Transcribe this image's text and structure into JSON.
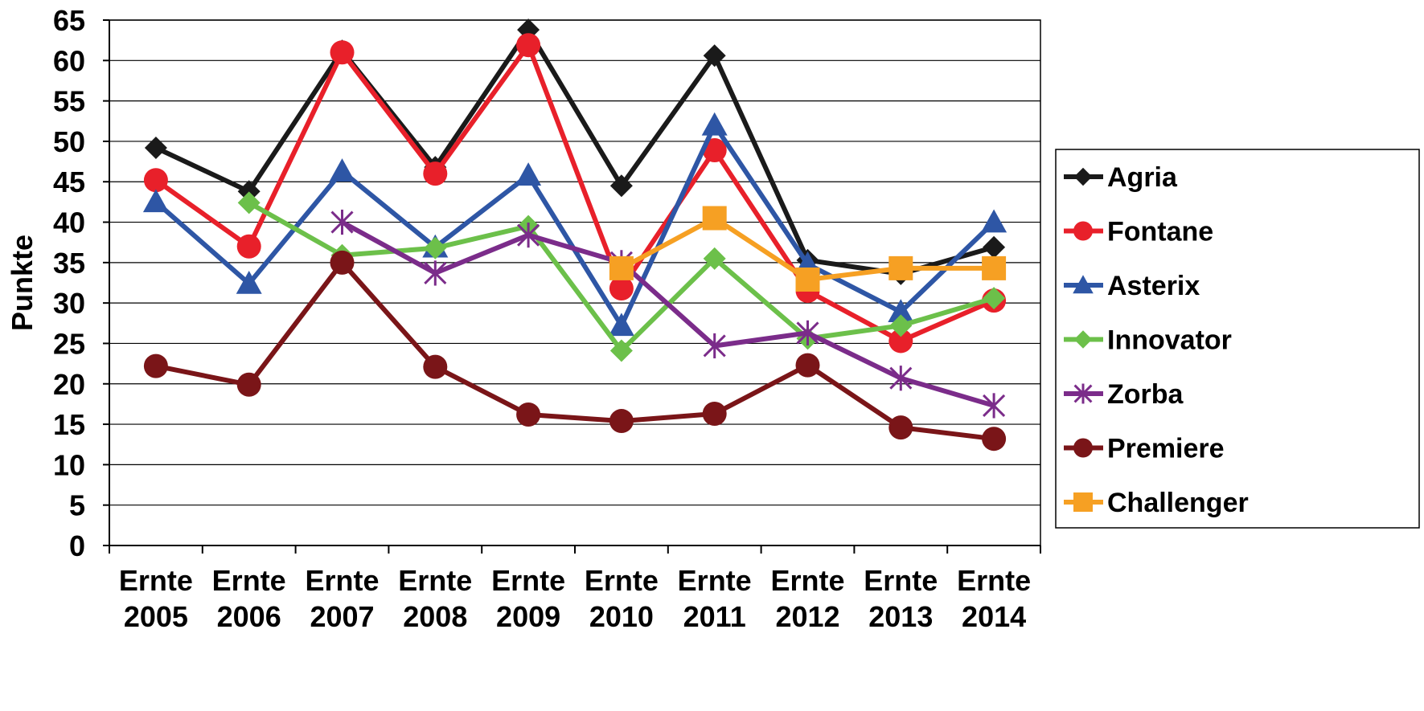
{
  "chart_data": {
    "type": "line",
    "title": "",
    "xlabel": "",
    "ylabel": "Punkte",
    "ylim": [
      0,
      65
    ],
    "yticks": [
      0,
      5,
      10,
      15,
      20,
      25,
      30,
      35,
      40,
      45,
      50,
      55,
      60,
      65
    ],
    "grid": true,
    "legend_position": "right",
    "categories": [
      [
        "Ernte",
        "2005"
      ],
      [
        "Ernte",
        "2006"
      ],
      [
        "Ernte",
        "2007"
      ],
      [
        "Ernte",
        "2008"
      ],
      [
        "Ernte",
        "2009"
      ],
      [
        "Ernte",
        "2010"
      ],
      [
        "Ernte",
        "2011"
      ],
      [
        "Ernte",
        "2012"
      ],
      [
        "Ernte",
        "2013"
      ],
      [
        "Ernte",
        "2014"
      ]
    ],
    "series": [
      {
        "name": "Agria",
        "color": "#1a1a1a",
        "marker": "diamond",
        "values": [
          49.2,
          43.8,
          61.2,
          46.8,
          63.8,
          44.5,
          60.6,
          35.3,
          33.6,
          36.9
        ]
      },
      {
        "name": "Fontane",
        "color": "#e8202a",
        "marker": "circle",
        "values": [
          45.2,
          37.0,
          61.0,
          46.0,
          61.9,
          31.8,
          48.9,
          31.5,
          25.3,
          30.3
        ]
      },
      {
        "name": "Asterix",
        "color": "#2e56a5",
        "marker": "triangle",
        "values": [
          42.5,
          32.4,
          46.3,
          36.9,
          45.8,
          27.2,
          52.0,
          34.8,
          28.9,
          40.0
        ]
      },
      {
        "name": "Innovator",
        "color": "#6cc04a",
        "marker": "diamond",
        "values": [
          null,
          42.4,
          35.9,
          36.8,
          39.5,
          24.1,
          35.5,
          25.6,
          27.2,
          30.6
        ]
      },
      {
        "name": "Zorba",
        "color": "#7b2c8a",
        "marker": "star",
        "values": [
          null,
          null,
          40.0,
          33.7,
          38.4,
          35.0,
          24.7,
          26.3,
          20.7,
          17.3
        ]
      },
      {
        "name": "Premiere",
        "color": "#7a1518",
        "marker": "circle",
        "values": [
          22.2,
          19.9,
          35.0,
          22.1,
          16.2,
          15.4,
          16.3,
          22.3,
          14.6,
          13.2
        ]
      },
      {
        "name": "Challenger",
        "color": "#f6a023",
        "marker": "square",
        "values": [
          null,
          null,
          null,
          null,
          null,
          34.3,
          40.5,
          32.9,
          34.3,
          34.3
        ]
      }
    ]
  }
}
